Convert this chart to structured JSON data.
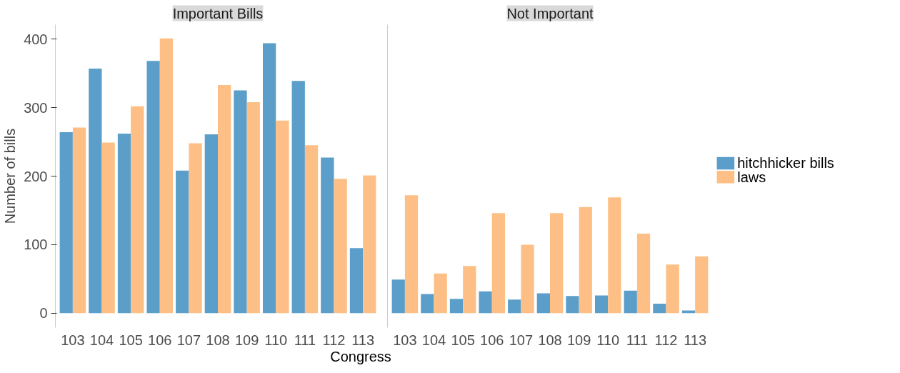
{
  "chart_data": [
    {
      "type": "bar",
      "title": "Important Bills",
      "xlabel": "Congress",
      "ylabel": "Number of bills",
      "categories": [
        "103",
        "104",
        "105",
        "106",
        "107",
        "108",
        "109",
        "110",
        "111",
        "112",
        "113"
      ],
      "series": [
        {
          "name": "hitchhicker bills",
          "color": "#5a9ec9",
          "values": [
            264,
            357,
            262,
            368,
            208,
            261,
            325,
            394,
            339,
            227,
            95
          ]
        },
        {
          "name": "laws",
          "color": "#fdbf85",
          "values": [
            271,
            249,
            302,
            401,
            248,
            333,
            308,
            281,
            245,
            196,
            201
          ]
        }
      ],
      "ylim": [
        -21,
        421
      ],
      "yticks": [
        0,
        100,
        200,
        300,
        400
      ],
      "grid": false,
      "legend": "right"
    },
    {
      "type": "bar",
      "title": "Not Important",
      "categories": [
        "103",
        "104",
        "105",
        "106",
        "107",
        "108",
        "109",
        "110",
        "111",
        "112",
        "113"
      ],
      "series": [
        {
          "color": "#5a9ec9",
          "values": [
            49,
            28,
            21,
            32,
            20,
            29,
            25,
            26,
            33,
            14,
            4
          ]
        },
        {
          "color": "#fdbf85",
          "values": [
            172,
            58,
            69,
            146,
            100,
            146,
            155,
            169,
            116,
            71,
            83
          ]
        }
      ],
      "ylim": [
        -21,
        421
      ],
      "yticks": [
        0,
        100,
        200,
        300,
        400
      ],
      "tick_labels": "x",
      "grid": false
    }
  ]
}
